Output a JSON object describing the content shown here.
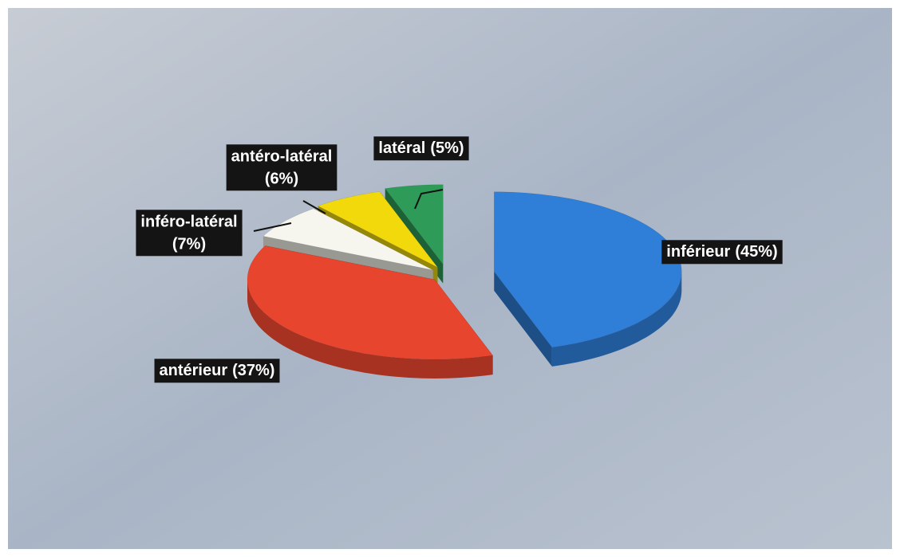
{
  "chart_data": {
    "type": "pie3d",
    "categories": [
      "inférieur",
      "antérieur",
      "inféro-latéral",
      "antéro-latéral",
      "latéral"
    ],
    "values": [
      45,
      37,
      7,
      6,
      5
    ],
    "value_labels": [
      "(45%)",
      "(37%)",
      "(7%)",
      "(6%)",
      "(5%)"
    ],
    "colors": [
      "#2f7ed8",
      "#e8452f",
      "#f7f6ee",
      "#f1d90c",
      "#2e9c58"
    ]
  }
}
